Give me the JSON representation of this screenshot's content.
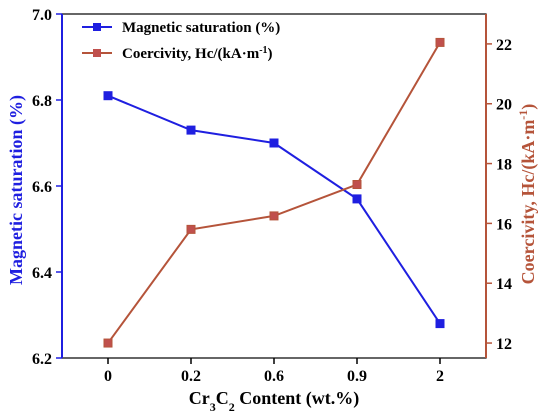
{
  "chart_data": {
    "type": "line",
    "categories": [
      "0",
      "0.2",
      "0.6",
      "0.9",
      "2"
    ],
    "xlabel_parts": {
      "pre": "Cr",
      "sub1": "3",
      "mid": "C",
      "sub2": "2",
      "post": " Content (wt.%)"
    },
    "left_axis": {
      "label": "Magnetic saturation (%)",
      "ylim": [
        6.2,
        7.0
      ],
      "ticks": [
        "6.2",
        "6.4",
        "6.6",
        "6.8",
        "7.0"
      ],
      "tick_values": [
        6.2,
        6.4,
        6.6,
        6.8,
        7.0
      ],
      "color": "#1f1fe0"
    },
    "right_axis": {
      "label_main": "Coercivity, Hc/(kA·m",
      "label_sup": "-1",
      "label_close": ")",
      "ylim": [
        11.5,
        23.0
      ],
      "ticks": [
        "12",
        "14",
        "16",
        "18",
        "20",
        "22"
      ],
      "tick_values": [
        12,
        14,
        16,
        18,
        20,
        22
      ],
      "color": "#b5543a"
    },
    "series": [
      {
        "name": "Magnetic saturation (%)",
        "axis": "left",
        "values": [
          6.81,
          6.73,
          6.7,
          6.57,
          6.28
        ],
        "color": "#1f1fe0",
        "marker_color": "#1f1fe0"
      },
      {
        "name_main": "Coercivity, Hc/(kA·m",
        "name_sup": "-1",
        "name_close": ")",
        "axis": "right",
        "values": [
          12.0,
          15.8,
          16.25,
          17.3,
          22.05
        ],
        "color": "#b5543a",
        "marker_color": "#c0504d"
      }
    ],
    "legend_position": "top-left",
    "grid": false
  }
}
